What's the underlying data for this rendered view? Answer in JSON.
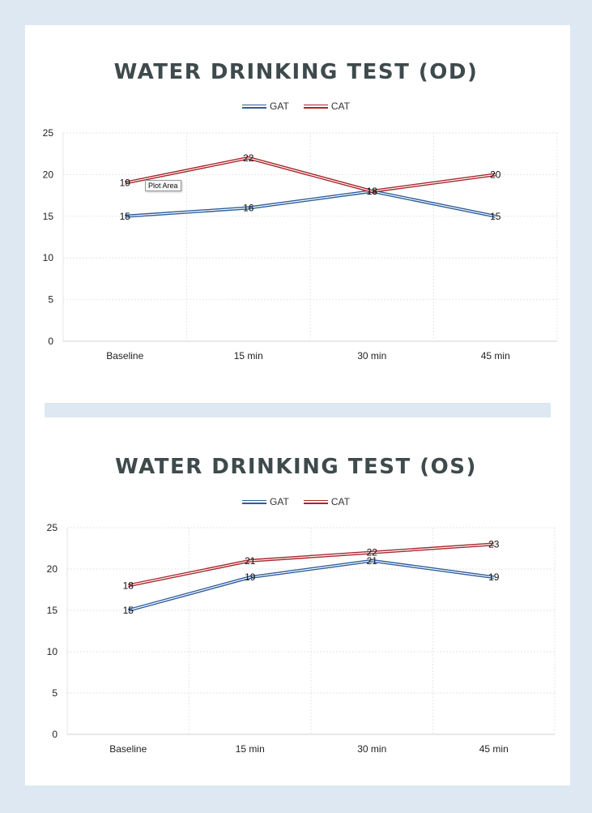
{
  "chart_data": [
    {
      "type": "line",
      "title": "WATER DRINKING TEST (OD)",
      "categories": [
        "Baseline",
        "15 min",
        "30 min",
        "45 min"
      ],
      "series": [
        {
          "name": "GAT",
          "color": "#2e5d9c",
          "values": [
            15,
            16,
            18,
            15
          ]
        },
        {
          "name": "CAT",
          "color": "#a8262b",
          "values": [
            19,
            22,
            18,
            20
          ]
        }
      ],
      "ylim": [
        0,
        25
      ],
      "yticks": [
        "0",
        "5",
        "10",
        "15",
        "20",
        "25"
      ],
      "legend_position": "top-center",
      "grid": true,
      "tooltip": "Plot Area"
    },
    {
      "type": "line",
      "title": "WATER DRINKING TEST (OS)",
      "categories": [
        "Baseline",
        "15 min",
        "30 min",
        "45 min"
      ],
      "series": [
        {
          "name": "GAT",
          "color": "#2e5d9c",
          "values": [
            15,
            19,
            21,
            19
          ]
        },
        {
          "name": "CAT",
          "color": "#a8262b",
          "values": [
            18,
            21,
            22,
            23
          ]
        }
      ],
      "ylim": [
        0,
        25
      ],
      "yticks": [
        "0",
        "5",
        "10",
        "15",
        "20",
        "25"
      ],
      "legend_position": "top-center",
      "grid": true
    }
  ]
}
